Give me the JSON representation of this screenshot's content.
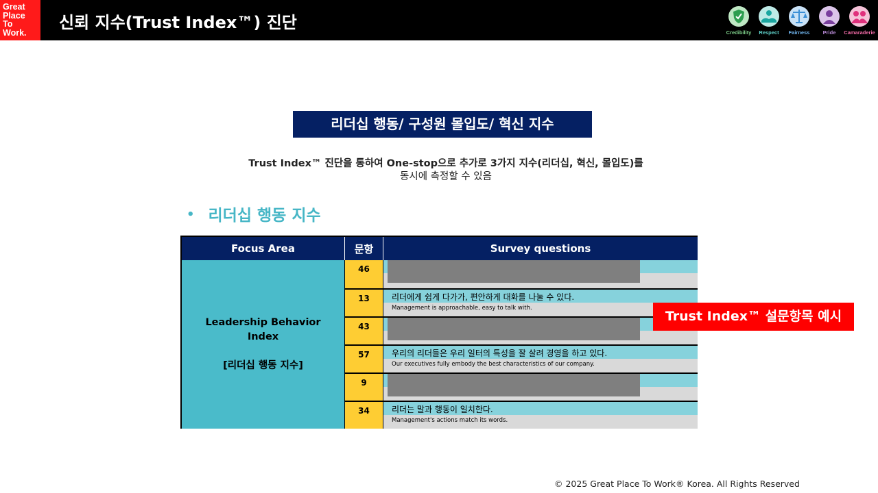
{
  "header": {
    "logo_lines": [
      "Great",
      "Place",
      "To",
      "Work."
    ],
    "title": "신뢰 지수(Trust Index™) 진단",
    "dimensions": [
      {
        "label": "Credibility",
        "icon": "shield-icon",
        "color": "#2e9e4f"
      },
      {
        "label": "Respect",
        "icon": "hands-icon",
        "color": "#1aa6a0"
      },
      {
        "label": "Fairness",
        "icon": "scales-icon",
        "color": "#3a8fd6"
      },
      {
        "label": "Pride",
        "icon": "person-icon",
        "color": "#7a3f9e"
      },
      {
        "label": "Camaraderie",
        "icon": "group-icon",
        "color": "#e0307c"
      }
    ]
  },
  "banner": {
    "text": "리더십 행동/ 구성원 몰입도/ 혁신 지수"
  },
  "intro": {
    "line1": "Trust Index™ 진단을 통하여 One-stop으로 추가로 3가지 지수(리더십, 혁신, 몰입도)를",
    "line2": "동시에 측정할 수 있음"
  },
  "section": {
    "bullet": "•",
    "title": "리더십 행동 지수"
  },
  "table": {
    "headers": {
      "focus": "Focus Area",
      "num": "문항",
      "questions": "Survey questions"
    },
    "focus_area": {
      "line1": "Leadership Behavior",
      "line2": "Index",
      "line3": "[리더십 행동 지수]"
    },
    "rows": [
      {
        "num": "46",
        "ko": "",
        "en": "",
        "redacted": true
      },
      {
        "num": "13",
        "ko": "리더에게 쉽게 다가가, 편안하게 대화를 나눌 수 있다.",
        "en": "Management is approachable, easy to talk with.",
        "redacted": false
      },
      {
        "num": "43",
        "ko": "",
        "en": "",
        "redacted": true
      },
      {
        "num": "57",
        "ko": "우리의 리더들은 우리 일터의 특성을 잘 살려 경영을 하고 있다.",
        "en": "Our executives fully embody the best characteristics of our company.",
        "redacted": false
      },
      {
        "num": "9",
        "ko": "",
        "en": "",
        "redacted": true
      },
      {
        "num": "34",
        "ko": "리더는 말과 행동이 일치한다.",
        "en": "Management's actions match its words.",
        "redacted": false
      }
    ]
  },
  "callout": {
    "text": "Trust Index™ 설문항목 예시"
  },
  "footer": {
    "copyright": "© 2025 Great Place To Work® Korea. All Rights Reserved"
  }
}
